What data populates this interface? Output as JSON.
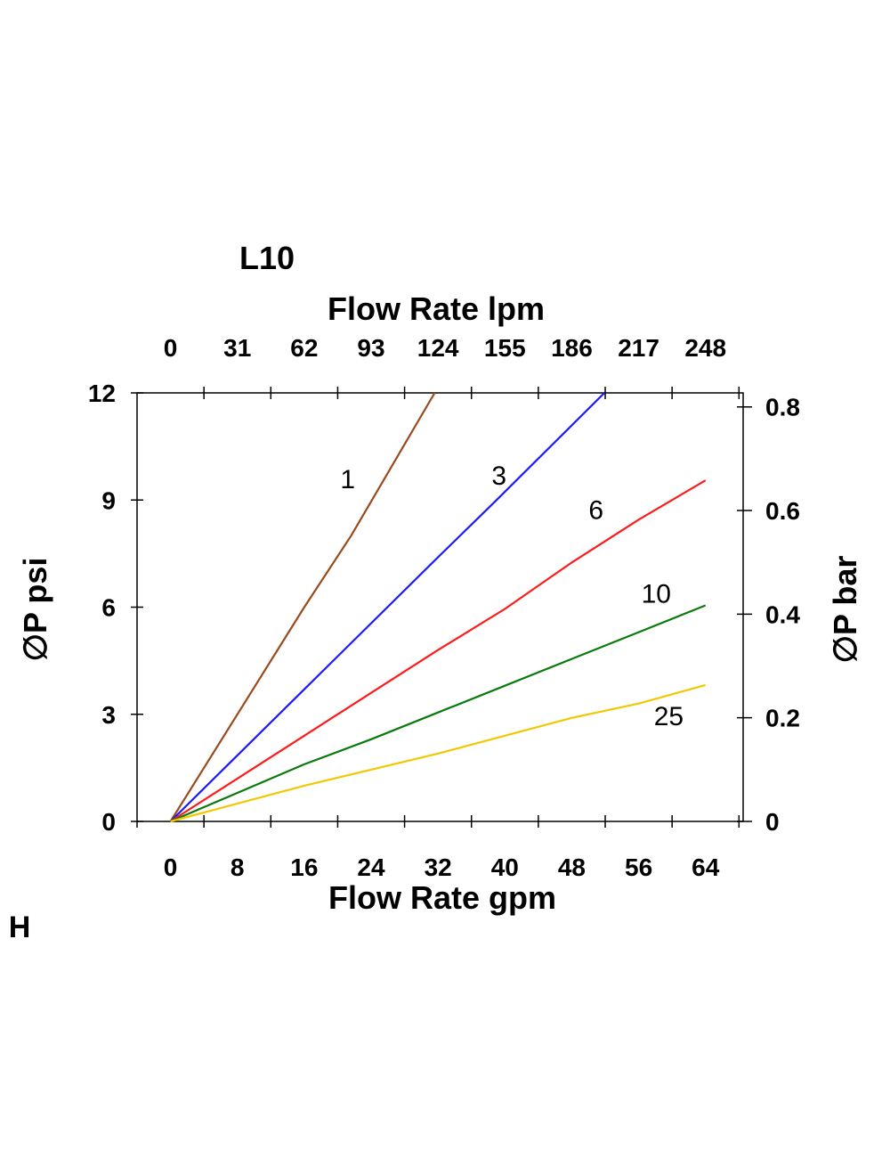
{
  "chart_data": {
    "type": "line",
    "title": "L10",
    "corner_label": "H",
    "xlabel": "Flow Rate gpm",
    "x2label": "Flow Rate lpm",
    "ylabel": "∅P psi",
    "y2label": "∅P bar",
    "xlim": [
      -4,
      68.5
    ],
    "ylim": [
      0,
      12
    ],
    "y2lim": [
      0,
      0.827
    ],
    "grid": false,
    "x_ticks": [
      0,
      8,
      16,
      24,
      32,
      40,
      48,
      56,
      64
    ],
    "x_tick_labels": [
      "0",
      "8",
      "16",
      "24",
      "32",
      "40",
      "48",
      "56",
      "64"
    ],
    "x_minor_ticks": [
      4,
      12,
      20,
      28,
      36,
      44,
      52,
      60,
      68
    ],
    "x2_tick_labels": [
      "0",
      "31",
      "62",
      "93",
      "124",
      "155",
      "186",
      "217",
      "248"
    ],
    "y_ticks": [
      0,
      3,
      6,
      9,
      12
    ],
    "y_tick_labels": [
      "0",
      "3",
      "6",
      "9",
      "12"
    ],
    "y2_ticks": [
      0,
      0.2,
      0.4,
      0.6,
      0.8
    ],
    "y2_tick_labels": [
      "0",
      "0.2",
      "0.4",
      "0.6",
      "0.8"
    ],
    "series": [
      {
        "name": "1",
        "color": "#9a4a1c",
        "label_at": [
          21.2,
          9.6
        ],
        "x": [
          0,
          16,
          21.6,
          31.6
        ],
        "y": [
          0,
          6.0,
          8.0,
          12
        ]
      },
      {
        "name": "3",
        "color": "#1a1aff",
        "label_at": [
          39.3,
          9.7
        ],
        "x": [
          0,
          16,
          32,
          39,
          51.9
        ],
        "y": [
          0,
          3.7,
          7.4,
          9.0,
          12
        ]
      },
      {
        "name": "6",
        "color": "#ff1a1a",
        "label_at": [
          50.9,
          8.75
        ],
        "x": [
          0,
          16,
          24,
          32,
          40,
          48,
          56,
          64
        ],
        "y": [
          0,
          2.4,
          3.6,
          4.8,
          5.95,
          7.25,
          8.45,
          9.55
        ]
      },
      {
        "name": "10",
        "color": "#0a7a0a",
        "label_at": [
          58.1,
          6.4
        ],
        "x": [
          0,
          16,
          24,
          32,
          40,
          48,
          56,
          64
        ],
        "y": [
          0,
          1.6,
          2.3,
          3.05,
          3.8,
          4.55,
          5.3,
          6.05
        ]
      },
      {
        "name": "25",
        "color": "#f2c800",
        "label_at": [
          59.6,
          2.97
        ],
        "x": [
          0,
          16,
          24,
          32,
          40,
          48,
          56,
          64
        ],
        "y": [
          0,
          1.0,
          1.45,
          1.9,
          2.4,
          2.9,
          3.3,
          3.82
        ]
      }
    ]
  }
}
